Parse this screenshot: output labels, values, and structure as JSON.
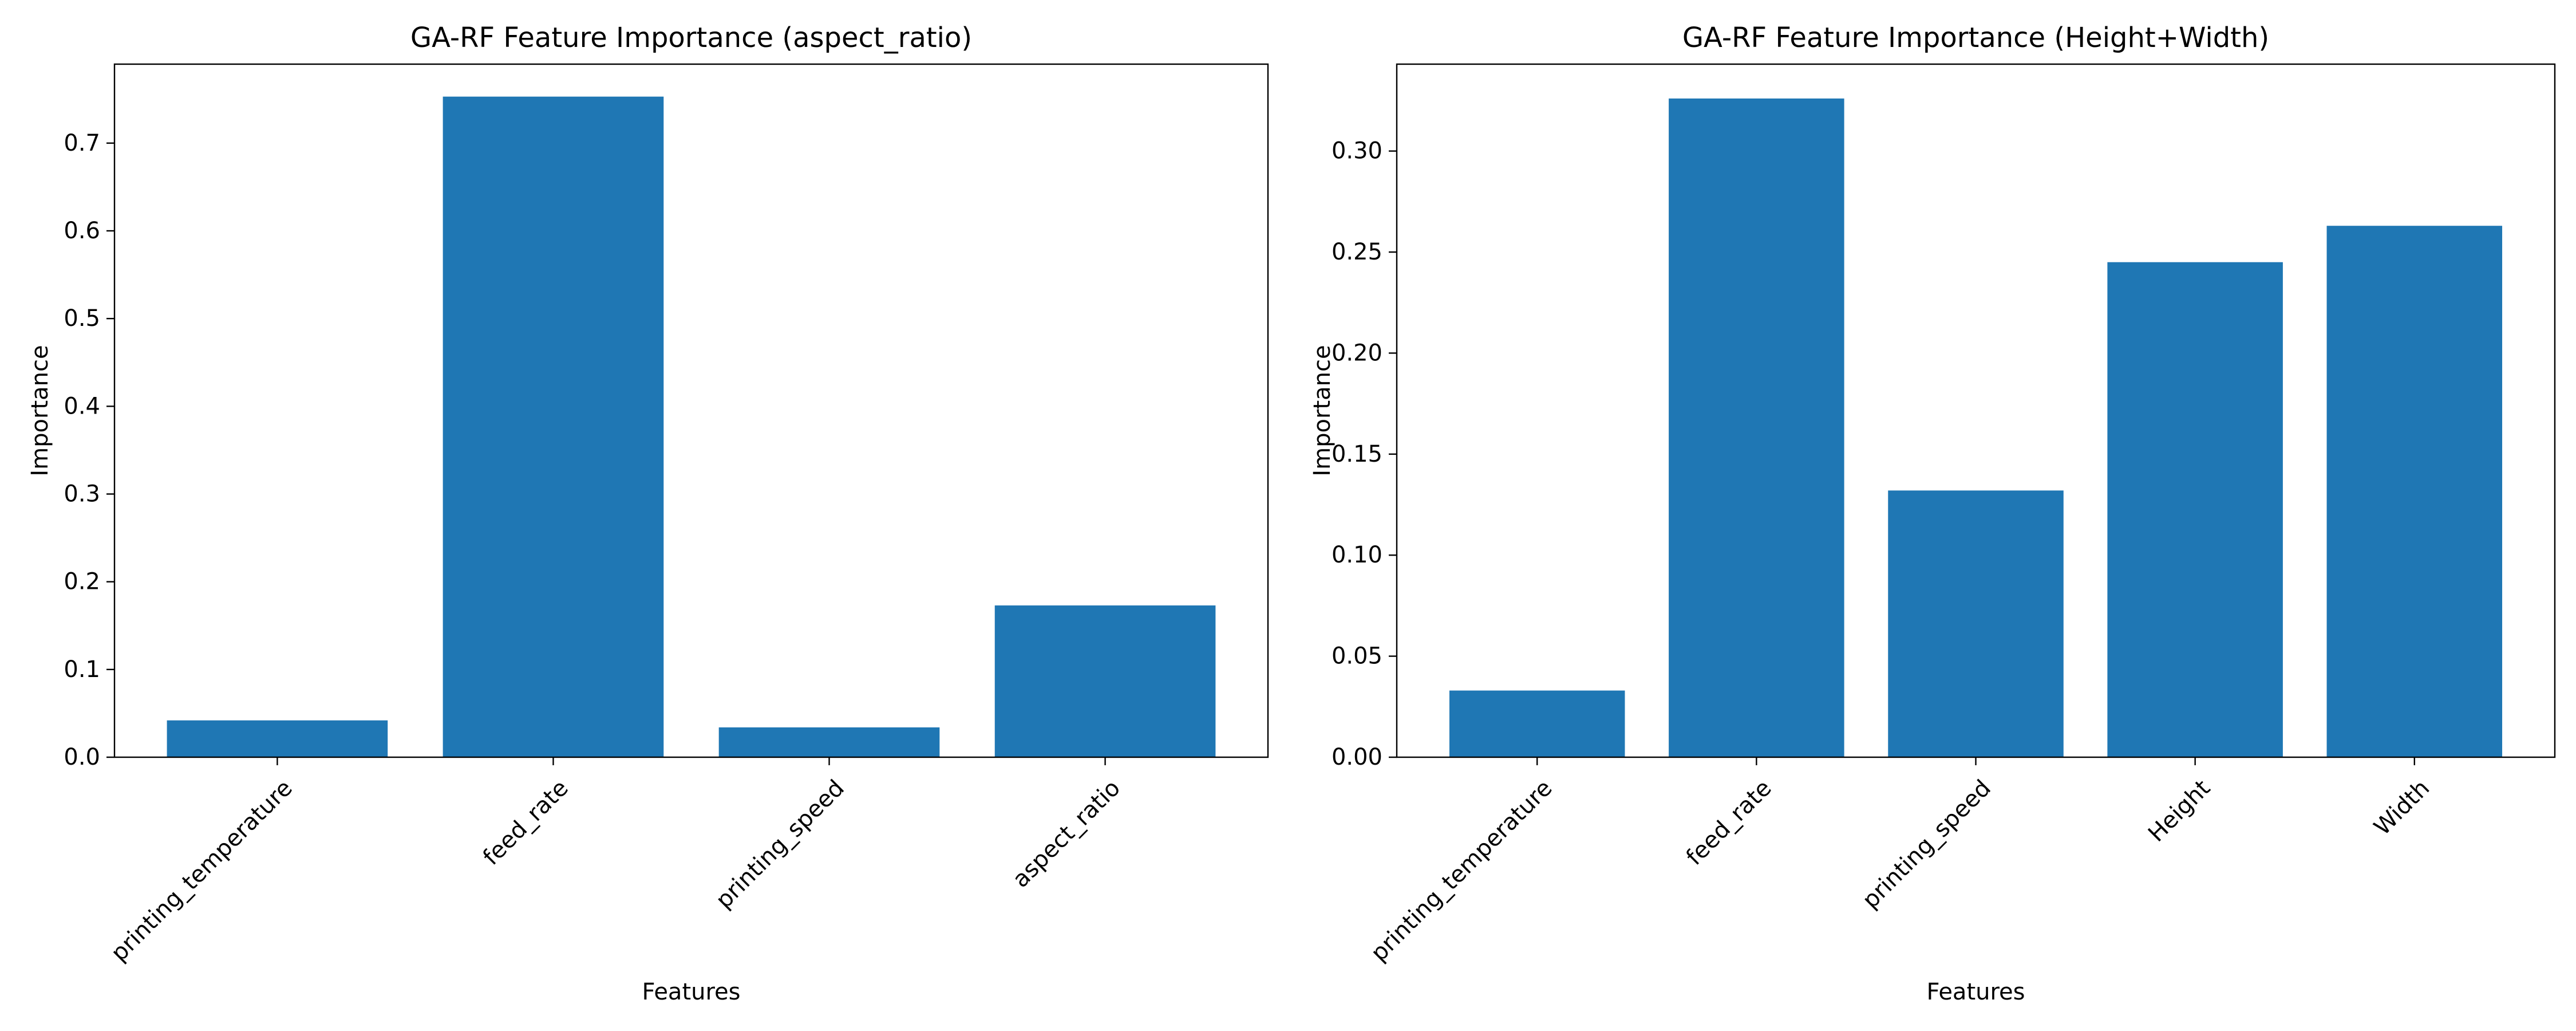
{
  "chart_data": [
    {
      "type": "bar",
      "title": "GA-RF Feature Importance (aspect_ratio)",
      "xlabel": "Features",
      "ylabel": "Importance",
      "categories": [
        "printing_temperature",
        "feed_rate",
        "printing_speed",
        "aspect_ratio"
      ],
      "values": [
        0.042,
        0.753,
        0.034,
        0.173
      ],
      "ylim": [
        0,
        0.79
      ],
      "yticks": [
        0.0,
        0.1,
        0.2,
        0.3,
        0.4,
        0.5,
        0.6,
        0.7
      ],
      "ytick_labels": [
        "0.0",
        "0.1",
        "0.2",
        "0.3",
        "0.4",
        "0.5",
        "0.6",
        "0.7"
      ],
      "xtick_rotation": 45,
      "bar_color": "#1f77b4",
      "grid": false
    },
    {
      "type": "bar",
      "title": "GA-RF Feature Importance (Height+Width)",
      "xlabel": "Features",
      "ylabel": "Importance",
      "categories": [
        "printing_temperature",
        "feed_rate",
        "printing_speed",
        "Height",
        "Width"
      ],
      "values": [
        0.033,
        0.326,
        0.132,
        0.245,
        0.263
      ],
      "ylim": [
        0,
        0.343
      ],
      "yticks": [
        0.0,
        0.05,
        0.1,
        0.15,
        0.2,
        0.25,
        0.3
      ],
      "ytick_labels": [
        "0.00",
        "0.05",
        "0.10",
        "0.15",
        "0.20",
        "0.25",
        "0.30"
      ],
      "xtick_rotation": 45,
      "bar_color": "#1f77b4",
      "grid": false
    }
  ]
}
